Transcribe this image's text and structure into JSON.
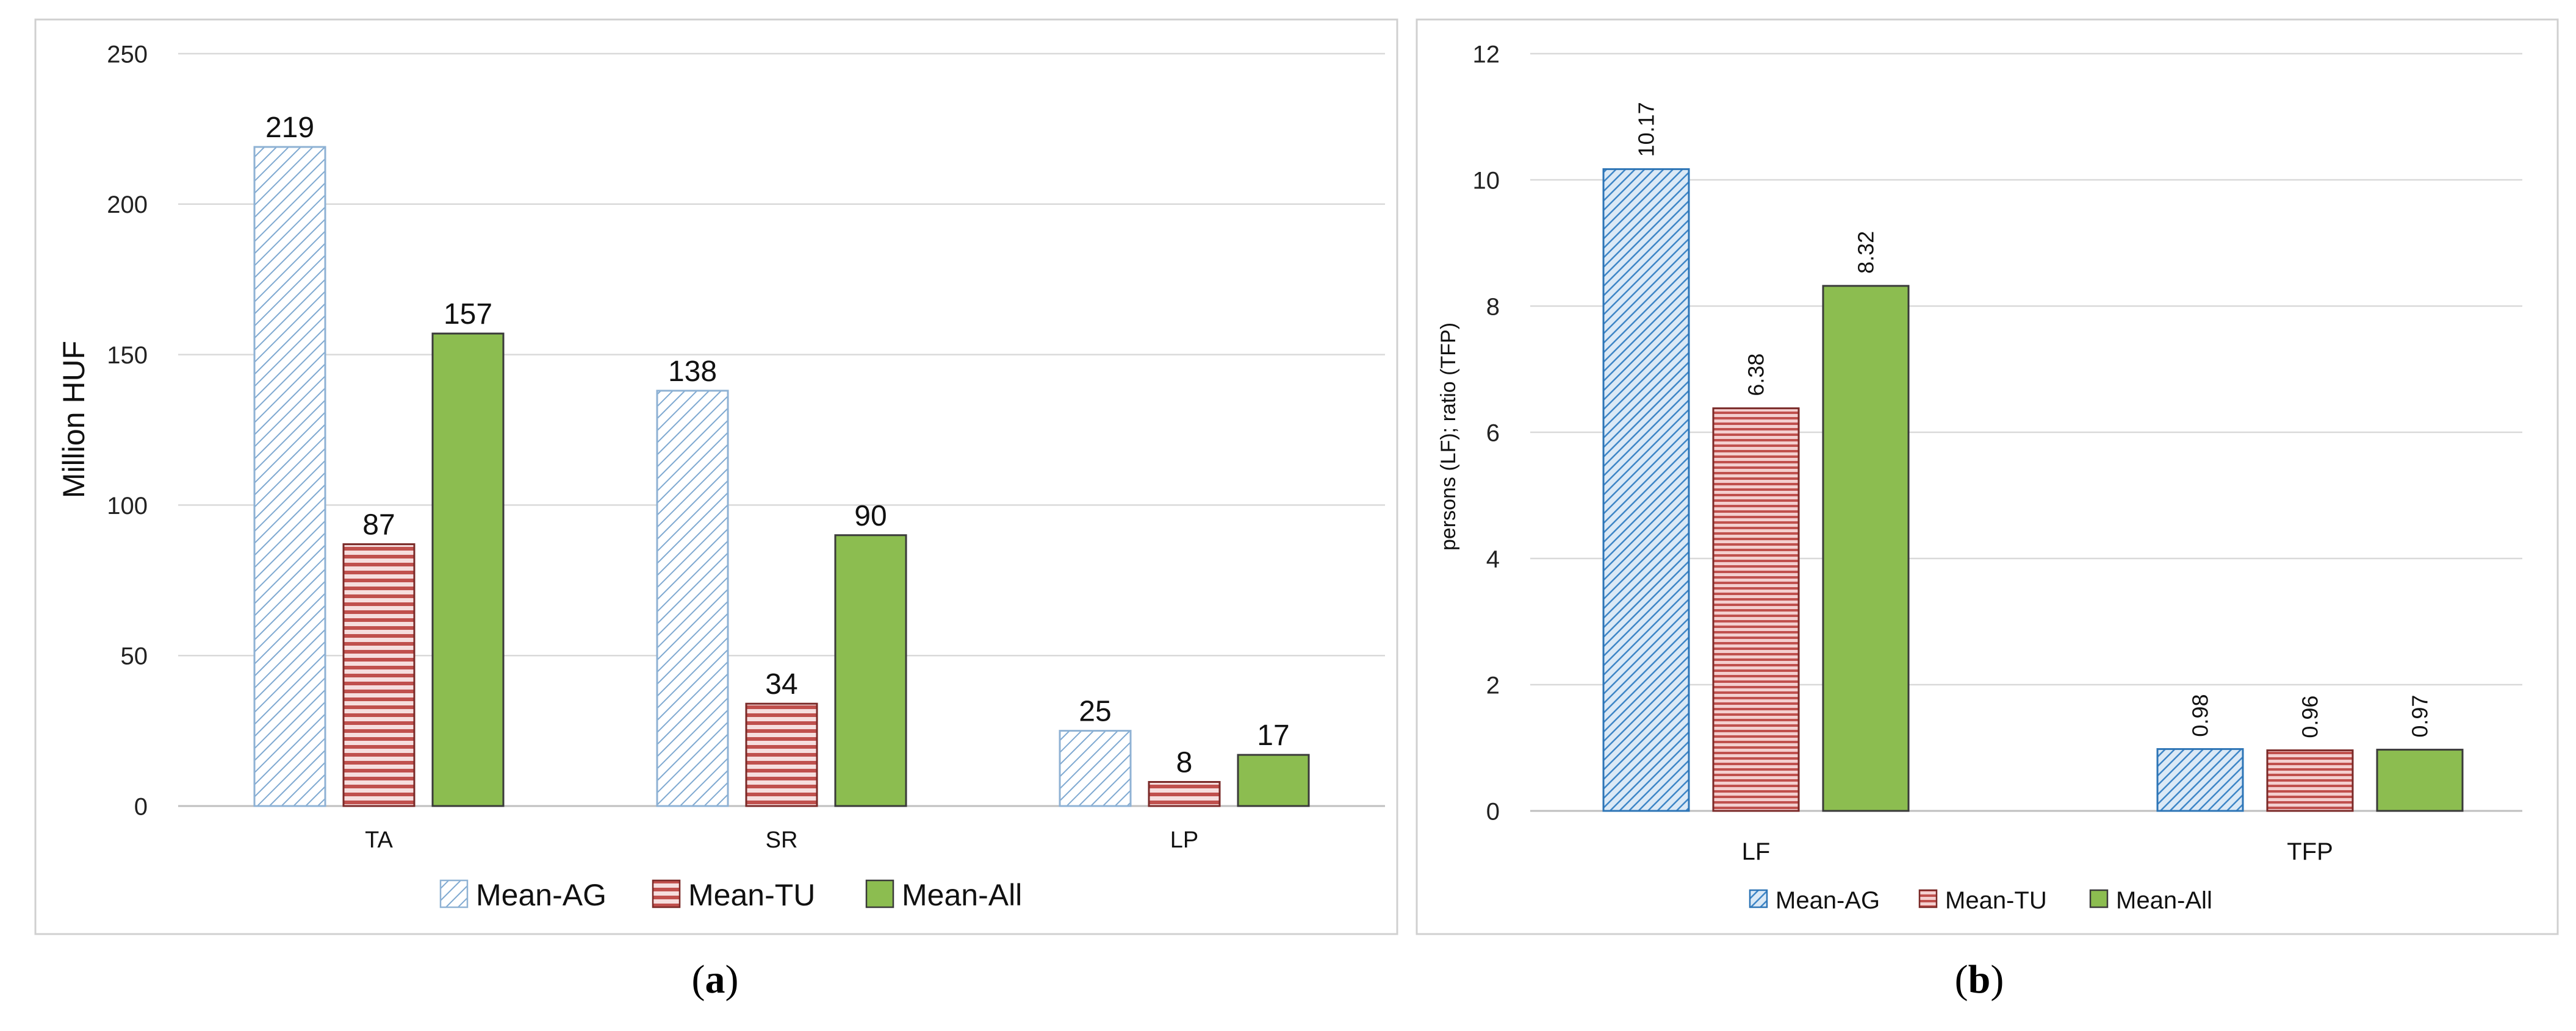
{
  "figure": {
    "captions": [
      "(a)",
      "(b)"
    ],
    "caption_letters": [
      "a",
      "b"
    ]
  },
  "colors": {
    "mean_ag": "#9dc3e6",
    "mean_ag_stroke": "#2e75b6",
    "mean_tu": "#c0504d",
    "mean_tu_light": "#f2c9c8",
    "mean_all": "#8cbd50",
    "mean_all_stroke": "#3a3a3a"
  },
  "chart_data": [
    {
      "type": "bar",
      "panel": "a",
      "title": "",
      "xlabel": "",
      "ylabel": "Million HUF",
      "categories": [
        "TA",
        "SR",
        "LP"
      ],
      "ylim": [
        0,
        250
      ],
      "yticks": [
        0,
        50,
        100,
        150,
        200,
        250
      ],
      "ytick_labels": [
        "0",
        "50",
        "100",
        "150",
        "200",
        "250"
      ],
      "legend_position": "bottom",
      "series": [
        {
          "name": "Mean-AG",
          "values": [
            219,
            138,
            25
          ],
          "labels": [
            "219",
            "138",
            "25"
          ]
        },
        {
          "name": "Mean-TU",
          "values": [
            87,
            34,
            8
          ],
          "labels": [
            "87",
            "34",
            "8"
          ]
        },
        {
          "name": "Mean-All",
          "values": [
            157,
            90,
            17
          ],
          "labels": [
            "157",
            "90",
            "17"
          ]
        }
      ]
    },
    {
      "type": "bar",
      "panel": "b",
      "title": "",
      "xlabel": "",
      "ylabel": "persons (LF); ratio (TFP)",
      "categories": [
        "LF",
        "TFP"
      ],
      "ylim": [
        0,
        12
      ],
      "yticks": [
        0,
        2,
        4,
        6,
        8,
        10,
        12
      ],
      "ytick_labels": [
        "0",
        "2",
        "4",
        "6",
        "8",
        "10",
        "12"
      ],
      "legend_position": "bottom",
      "series": [
        {
          "name": "Mean-AG",
          "values": [
            10.17,
            0.98
          ],
          "labels": [
            "10.17",
            "0.98"
          ]
        },
        {
          "name": "Mean-TU",
          "values": [
            6.38,
            0.96
          ],
          "labels": [
            "6.38",
            "0.96"
          ]
        },
        {
          "name": "Mean-All",
          "values": [
            8.32,
            0.97
          ],
          "labels": [
            "8.32",
            "0.97"
          ]
        }
      ]
    }
  ]
}
